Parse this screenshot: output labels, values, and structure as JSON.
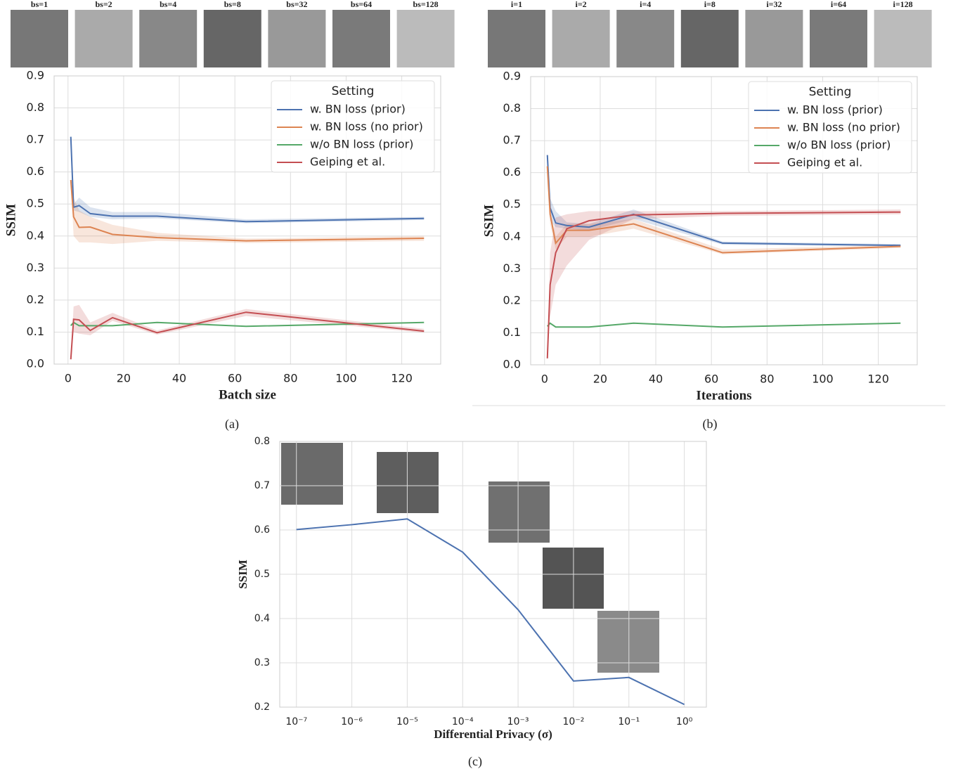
{
  "chart_data": [
    {
      "type": "line",
      "caption": "(a)",
      "xlabel": "Batch size",
      "ylabel": "SSIM",
      "thumbnail_labels": [
        "bs=1",
        "bs=2",
        "bs=4",
        "bs=8",
        "bs=32",
        "bs=64",
        "bs=128"
      ],
      "x": [
        1,
        2,
        4,
        8,
        16,
        32,
        64,
        128
      ],
      "xlim": [
        -5,
        134
      ],
      "xticks": [
        0,
        20,
        40,
        60,
        80,
        100,
        120
      ],
      "ylim": [
        0,
        0.9
      ],
      "yticks": [
        {
          "value": 0,
          "label": "0.0"
        },
        0.1,
        0.2,
        0.3,
        0.4,
        0.5,
        0.6,
        0.7,
        0.8,
        0.9
      ],
      "grid": true,
      "legend_title": "Setting",
      "legend_position": "upper right",
      "series": [
        {
          "name": "w. BN loss (prior)",
          "color": "#4c72b0",
          "values": [
            0.71,
            0.49,
            0.495,
            0.47,
            0.462,
            0.462,
            0.445,
            0.455
          ],
          "lower": [
            0.71,
            0.48,
            0.475,
            0.46,
            0.452,
            0.455,
            0.44,
            0.45
          ],
          "upper": [
            0.71,
            0.5,
            0.52,
            0.49,
            0.475,
            0.475,
            0.452,
            0.46
          ]
        },
        {
          "name": "w. BN loss (no prior)",
          "color": "#dd8452",
          "values": [
            0.575,
            0.46,
            0.427,
            0.428,
            0.405,
            0.395,
            0.385,
            0.393
          ],
          "lower": [
            0.575,
            0.4,
            0.38,
            0.38,
            0.375,
            0.385,
            0.378,
            0.385
          ],
          "upper": [
            0.575,
            0.52,
            0.48,
            0.46,
            0.435,
            0.41,
            0.392,
            0.4
          ]
        },
        {
          "name": "w/o BN loss (prior)",
          "color": "#55a868",
          "values": [
            0.12,
            0.13,
            0.12,
            0.12,
            0.12,
            0.13,
            0.118,
            0.13
          ]
        },
        {
          "name": "Geiping et al.",
          "color": "#c44e52",
          "values": [
            0.015,
            0.14,
            0.138,
            0.105,
            0.145,
            0.098,
            0.162,
            0.103
          ],
          "lower": [
            0.015,
            0.1,
            0.095,
            0.09,
            0.135,
            0.092,
            0.15,
            0.098
          ],
          "upper": [
            0.015,
            0.18,
            0.185,
            0.13,
            0.16,
            0.105,
            0.172,
            0.11
          ]
        }
      ]
    },
    {
      "type": "line",
      "caption": "(b)",
      "xlabel": "Iterations",
      "ylabel": "SSIM",
      "thumbnail_labels": [
        "i=1",
        "i=2",
        "i=4",
        "i=8",
        "i=32",
        "i=64",
        "i=128"
      ],
      "x": [
        1,
        2,
        4,
        8,
        16,
        32,
        64,
        128
      ],
      "xlim": [
        -5,
        134
      ],
      "xticks": [
        0,
        20,
        40,
        60,
        80,
        100,
        120
      ],
      "ylim": [
        0,
        0.9
      ],
      "yticks": [
        {
          "value": 0,
          "label": "0.0"
        },
        0.1,
        0.2,
        0.3,
        0.4,
        0.5,
        0.6,
        0.7,
        0.8,
        0.9
      ],
      "grid": true,
      "legend_title": "Setting",
      "legend_position": "upper right",
      "series": [
        {
          "name": "w. BN loss (prior)",
          "color": "#4c72b0",
          "values": [
            0.655,
            0.49,
            0.443,
            0.435,
            0.43,
            0.47,
            0.38,
            0.373
          ],
          "lower": [
            0.655,
            0.45,
            0.43,
            0.425,
            0.42,
            0.455,
            0.375,
            0.37
          ],
          "upper": [
            0.655,
            0.52,
            0.48,
            0.445,
            0.44,
            0.485,
            0.385,
            0.377
          ]
        },
        {
          "name": "w. BN loss (no prior)",
          "color": "#dd8452",
          "values": [
            0.62,
            0.47,
            0.38,
            0.42,
            0.42,
            0.44,
            0.35,
            0.37
          ],
          "lower": [
            0.62,
            0.44,
            0.36,
            0.4,
            0.4,
            0.425,
            0.345,
            0.365
          ],
          "upper": [
            0.62,
            0.49,
            0.4,
            0.44,
            0.44,
            0.455,
            0.36,
            0.375
          ]
        },
        {
          "name": "w/o BN loss (prior)",
          "color": "#55a868",
          "values": [
            0.12,
            0.13,
            0.118,
            0.118,
            0.118,
            0.13,
            0.118,
            0.13
          ]
        },
        {
          "name": "Geiping et al.",
          "color": "#c44e52",
          "values": [
            0.02,
            0.25,
            0.35,
            0.425,
            0.45,
            0.468,
            0.473,
            0.477
          ],
          "lower": [
            0.02,
            0.15,
            0.25,
            0.31,
            0.39,
            0.455,
            0.465,
            0.47
          ],
          "upper": [
            0.02,
            0.35,
            0.46,
            0.47,
            0.48,
            0.48,
            0.48,
            0.485
          ]
        }
      ]
    },
    {
      "type": "line",
      "caption": "(c)",
      "xlabel": "Differential Privacy (σ)",
      "ylabel": "SSIM",
      "xscale": "log",
      "x": [
        1e-07,
        1e-06,
        1e-05,
        0.0001,
        0.001,
        0.01,
        0.1,
        1
      ],
      "xlim": [
        5e-08,
        2.5
      ],
      "xticks": [
        {
          "value": 1e-07,
          "label": "10⁻⁷"
        },
        {
          "value": 1e-06,
          "label": "10⁻⁶"
        },
        {
          "value": 1e-05,
          "label": "10⁻⁵"
        },
        {
          "value": 0.0001,
          "label": "10⁻⁴"
        },
        {
          "value": 0.001,
          "label": "10⁻³"
        },
        {
          "value": 0.01,
          "label": "10⁻²"
        },
        {
          "value": 0.1,
          "label": "10⁻¹"
        },
        {
          "value": 1,
          "label": "10⁰"
        }
      ],
      "ylim": [
        0.2,
        0.8
      ],
      "yticks": [
        0.2,
        0.3,
        0.4,
        0.5,
        0.6,
        0.7,
        0.8
      ],
      "grid": true,
      "color": "#4c72b0",
      "values": [
        0.601,
        0.612,
        0.625,
        0.55,
        0.42,
        0.259,
        0.267,
        0.206
      ]
    }
  ]
}
